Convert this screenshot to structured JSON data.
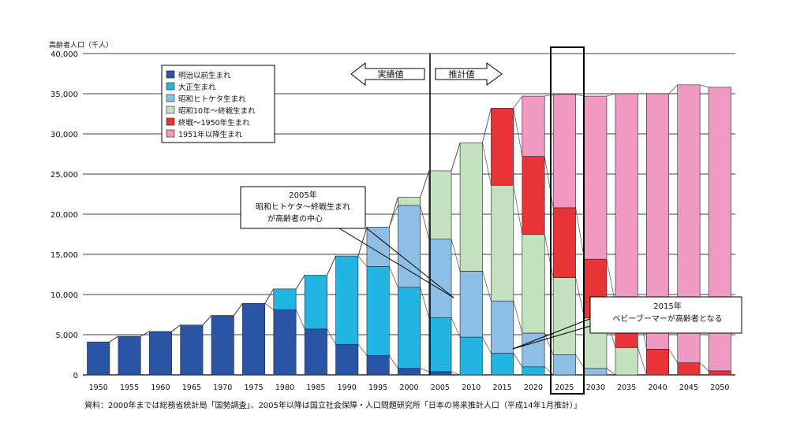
{
  "chart_data": {
    "type": "bar",
    "stacked": true,
    "title": "",
    "ylabel": "高齢者人口（千人）",
    "xlabel": "",
    "ylim": [
      0,
      40000
    ],
    "yticks": [
      0,
      5000,
      10000,
      15000,
      20000,
      25000,
      30000,
      35000,
      40000
    ],
    "ytick_labels": [
      "0",
      "5,000",
      "10,000",
      "15,000",
      "20,000",
      "25,000",
      "30,000",
      "35,000",
      "40,000"
    ],
    "grid": true,
    "legend_position": "top-left",
    "categories": [
      "1950",
      "1955",
      "1960",
      "1965",
      "1970",
      "1975",
      "1980",
      "1985",
      "1990",
      "1995",
      "2000",
      "2005",
      "2010",
      "2015",
      "2020",
      "2025",
      "2030",
      "2035",
      "2040",
      "2045",
      "2050"
    ],
    "series": [
      {
        "name": "明治以前生まれ",
        "color": "#2a55a7",
        "values": [
          4100,
          4800,
          5400,
          6200,
          7400,
          8900,
          8100,
          5700,
          3800,
          2400,
          800,
          400,
          0,
          0,
          0,
          0,
          0,
          0,
          0,
          0,
          0
        ]
      },
      {
        "name": "大正生まれ",
        "color": "#22b5e3",
        "values": [
          0,
          0,
          0,
          0,
          0,
          0,
          2600,
          6700,
          11000,
          11100,
          10100,
          6700,
          4700,
          2700,
          1000,
          0,
          0,
          0,
          0,
          0,
          0
        ]
      },
      {
        "name": "昭和ヒトケタ生まれ",
        "color": "#8dbfe6",
        "values": [
          0,
          0,
          0,
          0,
          0,
          0,
          0,
          0,
          0,
          4900,
          10200,
          9800,
          8200,
          6500,
          4200,
          2500,
          800,
          0,
          0,
          0,
          0
        ]
      },
      {
        "name": "昭和10年～終戦生まれ",
        "color": "#c5e2c0",
        "values": [
          0,
          0,
          0,
          0,
          0,
          0,
          0,
          0,
          0,
          0,
          1000,
          8500,
          16000,
          14400,
          12300,
          9600,
          6300,
          3400,
          0,
          0,
          0
        ]
      },
      {
        "name": "終戦～1950年生まれ",
        "color": "#e83436",
        "values": [
          0,
          0,
          0,
          0,
          0,
          0,
          0,
          0,
          0,
          0,
          0,
          0,
          0,
          9600,
          9700,
          8700,
          7300,
          5400,
          3200,
          1500,
          500
        ]
      },
      {
        "name": "1951年以降生まれ",
        "color": "#f09ac3",
        "values": [
          0,
          0,
          0,
          0,
          0,
          0,
          0,
          0,
          0,
          0,
          0,
          0,
          0,
          0,
          7500,
          14100,
          20300,
          26200,
          31800,
          34600,
          35300
        ]
      }
    ],
    "annotations": [
      {
        "text": "2005年\n昭和ヒトケタ～終戦生まれ\nが高齢者の中心"
      },
      {
        "text": "2015年\nベビーブーマーが高齢者となる"
      }
    ],
    "arrows": {
      "left_label": "実績値",
      "right_label": "推計値"
    },
    "highlighted_category": "2025"
  },
  "source_note": "資料：2000年までは総務省統計局「国勢調査」、2005年以降は国立社会保障・人口問題研究所「日本の将来推計人口（平成14年1月推計）」"
}
